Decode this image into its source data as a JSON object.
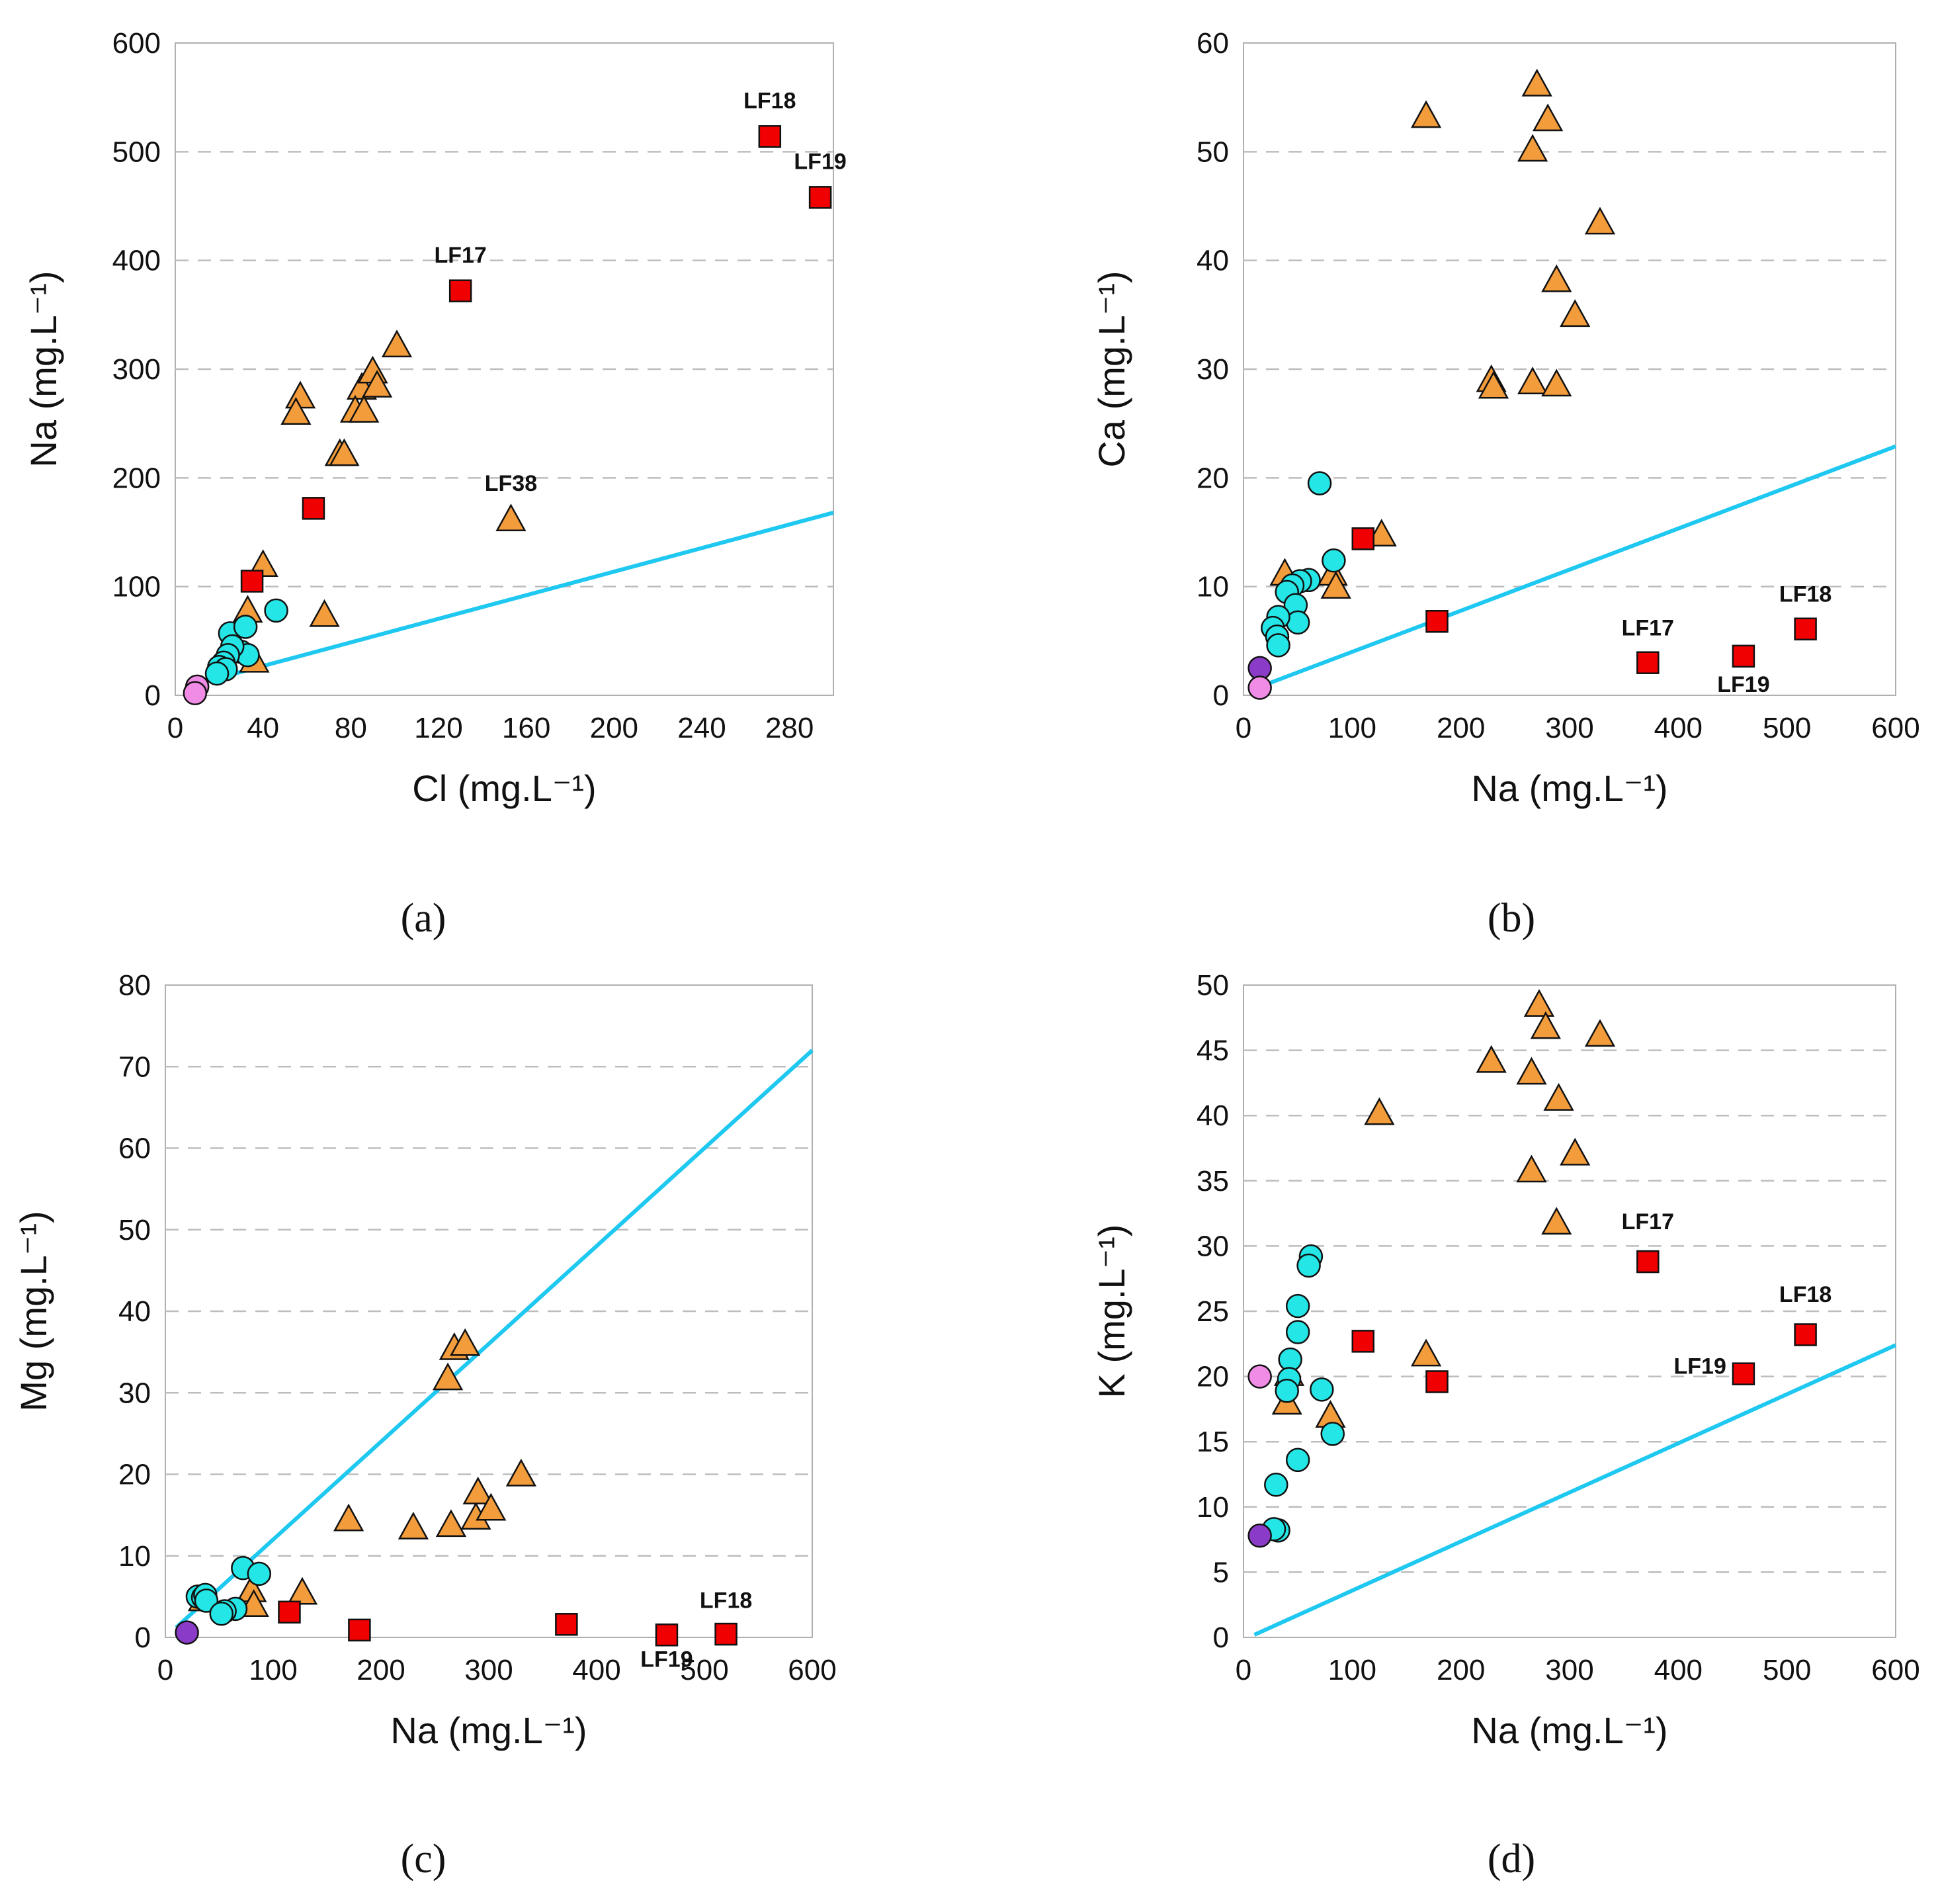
{
  "colors": {
    "triangle": "#F39C3C",
    "square": "#F00000",
    "circle_cyan": "#24E6E6",
    "circle_pink": "#F08CE6",
    "circle_purple": "#8A3CC8",
    "ref_line": "#1EC8F0",
    "grid": "#BDBDBD"
  },
  "chart_data": [
    {
      "id": "a",
      "panel_label": "(a)",
      "type": "scatter",
      "xlabel": "Cl (mg.L⁻¹)",
      "ylabel": "Na (mg.L⁻¹)",
      "xlim": [
        0,
        300
      ],
      "ylim": [
        0,
        600
      ],
      "xticks": [
        0,
        40,
        80,
        120,
        160,
        200,
        240,
        280
      ],
      "yticks": [
        0,
        100,
        200,
        300,
        400,
        500,
        600
      ],
      "ref_line": {
        "x": [
          5,
          300
        ],
        "y": [
          8,
          168
        ]
      },
      "series": [
        {
          "name": "triangles",
          "marker": "triangle",
          "color_key": "triangle",
          "points": [
            [
              57,
              275
            ],
            [
              55,
              260
            ],
            [
              75,
              222
            ],
            [
              77,
              222
            ],
            [
              85,
              283
            ],
            [
              82,
              262
            ],
            [
              86,
              262
            ],
            [
              90,
              298
            ],
            [
              92,
              285
            ],
            [
              101,
              322
            ],
            [
              153,
              162
            ],
            [
              40,
              120
            ],
            [
              33,
              78
            ],
            [
              68,
              74
            ],
            [
              36,
              32
            ]
          ]
        },
        {
          "name": "squares",
          "marker": "square",
          "color_key": "square",
          "points": [
            [
              271,
              514
            ],
            [
              294,
              458
            ],
            [
              130,
              372
            ],
            [
              63,
              172
            ],
            [
              35,
              105
            ]
          ]
        },
        {
          "name": "cyan circles",
          "marker": "circle",
          "color_key": "circle_cyan",
          "points": [
            [
              25,
              57
            ],
            [
              32,
              63
            ],
            [
              46,
              78
            ],
            [
              30,
              40
            ],
            [
              33,
              37
            ],
            [
              26,
              45
            ],
            [
              24,
              37
            ],
            [
              22,
              30
            ],
            [
              20,
              26
            ],
            [
              23,
              24
            ],
            [
              19,
              20
            ]
          ]
        },
        {
          "name": "pink circles",
          "marker": "circle",
          "color_key": "circle_pink",
          "points": [
            [
              10,
              8
            ],
            [
              9,
              2
            ]
          ]
        }
      ],
      "annotations": [
        {
          "text": "LF18",
          "x": 271,
          "y": 540
        },
        {
          "text": "LF19",
          "x": 294,
          "y": 484
        },
        {
          "text": "LF17",
          "x": 130,
          "y": 398
        },
        {
          "text": "LF38",
          "x": 153,
          "y": 188
        }
      ]
    },
    {
      "id": "b",
      "panel_label": "(b)",
      "type": "scatter",
      "xlabel": "Na (mg.L⁻¹)",
      "ylabel": "Ca (mg.L⁻¹)",
      "xlim": [
        0,
        600
      ],
      "ylim": [
        0,
        60
      ],
      "xticks": [
        0,
        100,
        200,
        300,
        400,
        500,
        600
      ],
      "yticks": [
        0,
        10,
        20,
        30,
        40,
        50,
        60
      ],
      "ref_line": {
        "x": [
          10,
          600
        ],
        "y": [
          0.6,
          22.9
        ]
      },
      "series": [
        {
          "name": "triangles",
          "marker": "triangle",
          "color_key": "triangle",
          "points": [
            [
              168,
              53.3
            ],
            [
              270,
              56.2
            ],
            [
              266,
              50.2
            ],
            [
              280,
              53
            ],
            [
              328,
              43.5
            ],
            [
              288,
              38.2
            ],
            [
              305,
              35
            ],
            [
              228,
              29
            ],
            [
              230,
              28.4
            ],
            [
              266,
              28.8
            ],
            [
              288,
              28.6
            ],
            [
              127,
              14.8
            ],
            [
              38,
              11.2
            ],
            [
              82,
              11.2
            ],
            [
              85,
              10
            ]
          ]
        },
        {
          "name": "squares",
          "marker": "square",
          "color_key": "square",
          "points": [
            [
              517,
              6.1
            ],
            [
              372,
              3
            ],
            [
              460,
              3.6
            ],
            [
              178,
              6.8
            ],
            [
              110,
              14.4
            ]
          ]
        },
        {
          "name": "cyan circles",
          "marker": "circle",
          "color_key": "circle_cyan",
          "points": [
            [
              70,
              19.5
            ],
            [
              83,
              12.4
            ],
            [
              60,
              10.6
            ],
            [
              52,
              10.5
            ],
            [
              45,
              10.1
            ],
            [
              40,
              9.5
            ],
            [
              48,
              8.3
            ],
            [
              50,
              6.7
            ],
            [
              32,
              7.2
            ],
            [
              27,
              6.2
            ],
            [
              31,
              5.4
            ],
            [
              32,
              4.6
            ]
          ]
        },
        {
          "name": "purple circles",
          "marker": "circle",
          "color_key": "circle_purple",
          "points": [
            [
              15,
              2.5
            ]
          ]
        },
        {
          "name": "pink circles",
          "marker": "circle",
          "color_key": "circle_pink",
          "points": [
            [
              15,
              0.7
            ]
          ]
        }
      ],
      "annotations": [
        {
          "text": "LF18",
          "x": 517,
          "y": 8.6
        },
        {
          "text": "LF17",
          "x": 372,
          "y": 5.5
        },
        {
          "text": "LF19",
          "x": 460,
          "y": 0.3
        }
      ]
    },
    {
      "id": "c",
      "panel_label": "(c)",
      "type": "scatter",
      "xlabel": "Na (mg.L⁻¹)",
      "ylabel": "Mg (mg.L⁻¹)",
      "xlim": [
        0,
        600
      ],
      "ylim": [
        0,
        80
      ],
      "xticks": [
        0,
        100,
        200,
        300,
        400,
        500,
        600
      ],
      "yticks": [
        0,
        10,
        20,
        30,
        40,
        50,
        60,
        70,
        80
      ],
      "ref_line": {
        "x": [
          10,
          600
        ],
        "y": [
          1.2,
          72
        ]
      },
      "series": [
        {
          "name": "triangles",
          "marker": "triangle",
          "color_key": "triangle",
          "points": [
            [
              268,
              35.5
            ],
            [
              278,
              36
            ],
            [
              262,
              31.8
            ],
            [
              170,
              14.5
            ],
            [
              230,
              13.5
            ],
            [
              265,
              13.8
            ],
            [
              288,
              14.7
            ],
            [
              290,
              17.8
            ],
            [
              302,
              15.8
            ],
            [
              330,
              20
            ],
            [
              127,
              5.5
            ],
            [
              80,
              5.8
            ],
            [
              82,
              4
            ],
            [
              35,
              4.7
            ]
          ]
        },
        {
          "name": "squares",
          "marker": "square",
          "color_key": "square",
          "points": [
            [
              520,
              0.4
            ],
            [
              465,
              0.3
            ],
            [
              372,
              1.6
            ],
            [
              180,
              0.9
            ],
            [
              115,
              3.1
            ]
          ]
        },
        {
          "name": "cyan circles",
          "marker": "circle",
          "color_key": "circle_cyan",
          "points": [
            [
              72,
              8.5
            ],
            [
              87,
              7.8
            ],
            [
              30,
              5
            ],
            [
              35,
              4.9
            ],
            [
              37,
              5.2
            ],
            [
              38,
              4.5
            ],
            [
              65,
              3.5
            ],
            [
              55,
              3.2
            ],
            [
              52,
              2.9
            ]
          ]
        },
        {
          "name": "purple circles",
          "marker": "circle",
          "color_key": "circle_purple",
          "points": [
            [
              20,
              0.6
            ]
          ]
        }
      ],
      "annotations": [
        {
          "text": "LF18",
          "x": 520,
          "y": 3.6
        },
        {
          "text": "LF19",
          "x": 465,
          "y": -3.6
        }
      ]
    },
    {
      "id": "d",
      "panel_label": "(d)",
      "type": "scatter",
      "xlabel": "Na (mg.L⁻¹)",
      "ylabel": "K (mg.L⁻¹)",
      "xlim": [
        0,
        600
      ],
      "ylim": [
        0,
        50
      ],
      "xticks": [
        0,
        100,
        200,
        300,
        400,
        500,
        600
      ],
      "yticks": [
        0,
        5,
        10,
        15,
        20,
        25,
        30,
        35,
        40,
        45,
        50
      ],
      "ref_line": {
        "x": [
          10,
          600
        ],
        "y": [
          0.2,
          22.4
        ]
      },
      "series": [
        {
          "name": "triangles",
          "marker": "triangle",
          "color_key": "triangle",
          "points": [
            [
              272,
              48.5
            ],
            [
              278,
              46.8
            ],
            [
              328,
              46.2
            ],
            [
              228,
              44.2
            ],
            [
              265,
              43.3
            ],
            [
              290,
              41.3
            ],
            [
              125,
              40.2
            ],
            [
              305,
              37.1
            ],
            [
              265,
              35.8
            ],
            [
              288,
              31.8
            ],
            [
              168,
              21.7
            ],
            [
              80,
              17
            ],
            [
              40,
              18
            ],
            [
              42,
              20.2
            ]
          ]
        },
        {
          "name": "squares",
          "marker": "square",
          "color_key": "square",
          "points": [
            [
              372,
              28.8
            ],
            [
              517,
              23.2
            ],
            [
              460,
              20.2
            ],
            [
              110,
              22.7
            ],
            [
              178,
              19.6
            ]
          ]
        },
        {
          "name": "cyan circles",
          "marker": "circle",
          "color_key": "circle_cyan",
          "points": [
            [
              62,
              29.2
            ],
            [
              60,
              28.5
            ],
            [
              50,
              25.4
            ],
            [
              50,
              23.4
            ],
            [
              43,
              21.3
            ],
            [
              42,
              19.8
            ],
            [
              40,
              18.9
            ],
            [
              72,
              19
            ],
            [
              82,
              15.6
            ],
            [
              50,
              13.6
            ],
            [
              30,
              11.7
            ],
            [
              32,
              8.2
            ],
            [
              28,
              8.3
            ]
          ]
        },
        {
          "name": "pink circles",
          "marker": "circle",
          "color_key": "circle_pink",
          "points": [
            [
              15,
              20
            ]
          ]
        },
        {
          "name": "purple circles",
          "marker": "circle",
          "color_key": "circle_purple",
          "points": [
            [
              15,
              7.8
            ]
          ]
        }
      ],
      "annotations": [
        {
          "text": "LF17",
          "x": 372,
          "y": 31.3
        },
        {
          "text": "LF18",
          "x": 517,
          "y": 25.7
        },
        {
          "text": "LF19",
          "x": 420,
          "y": 20.2
        }
      ]
    }
  ]
}
